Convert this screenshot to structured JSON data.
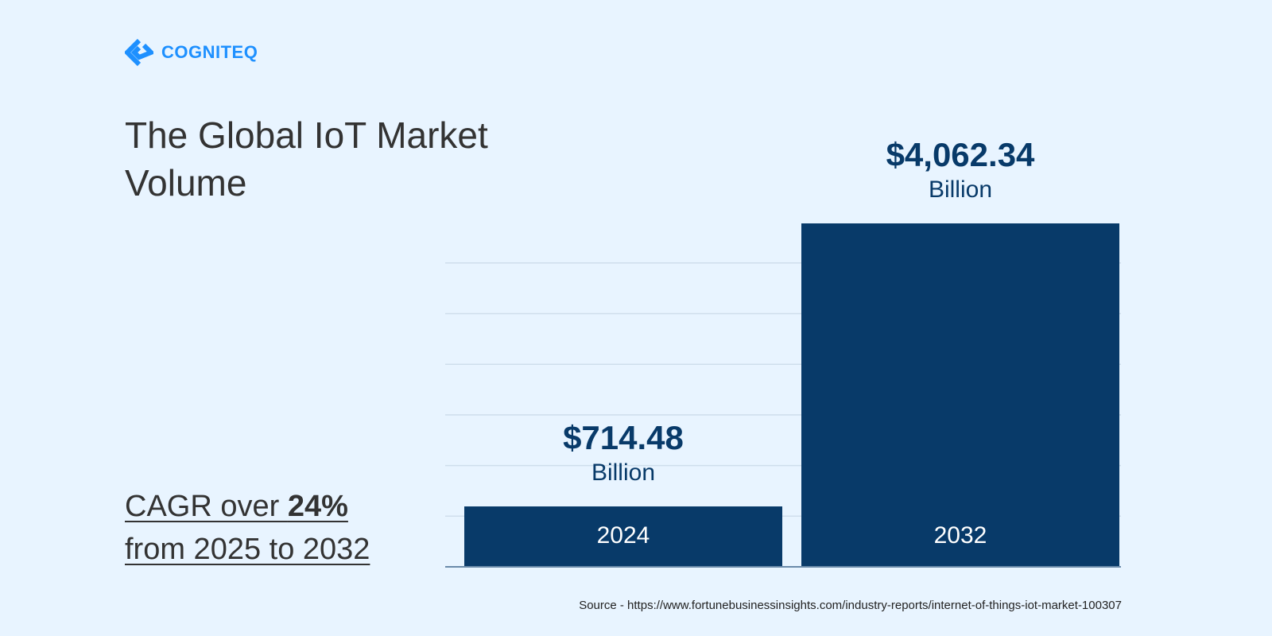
{
  "brand": {
    "name": "COGNITEQ",
    "color": "#1e90ff",
    "icon": "cogniteq-logo-icon"
  },
  "title": "The Global IoT Market Volume",
  "cagr": {
    "prefix": "CAGR over ",
    "value": "24%",
    "line2": "from 2025 to 2032"
  },
  "source": "Source - https://www.fortunebusinessinsights.com/industry-reports/internet-of-things-iot-market-100307",
  "chart_data": {
    "type": "bar",
    "title": "The Global IoT Market Volume",
    "categories": [
      "2024",
      "2032"
    ],
    "values": [
      714.48,
      4062.34
    ],
    "data_labels": [
      {
        "value": "$714.48",
        "unit": "Billion"
      },
      {
        "value": "$4,062.34",
        "unit": "Billion"
      }
    ],
    "unit": "Billion USD",
    "grid": true,
    "colors": {
      "bar": "#083a69",
      "grid": "#cfdeec",
      "axis": "#6a8aaa",
      "label": "#083a69"
    }
  }
}
